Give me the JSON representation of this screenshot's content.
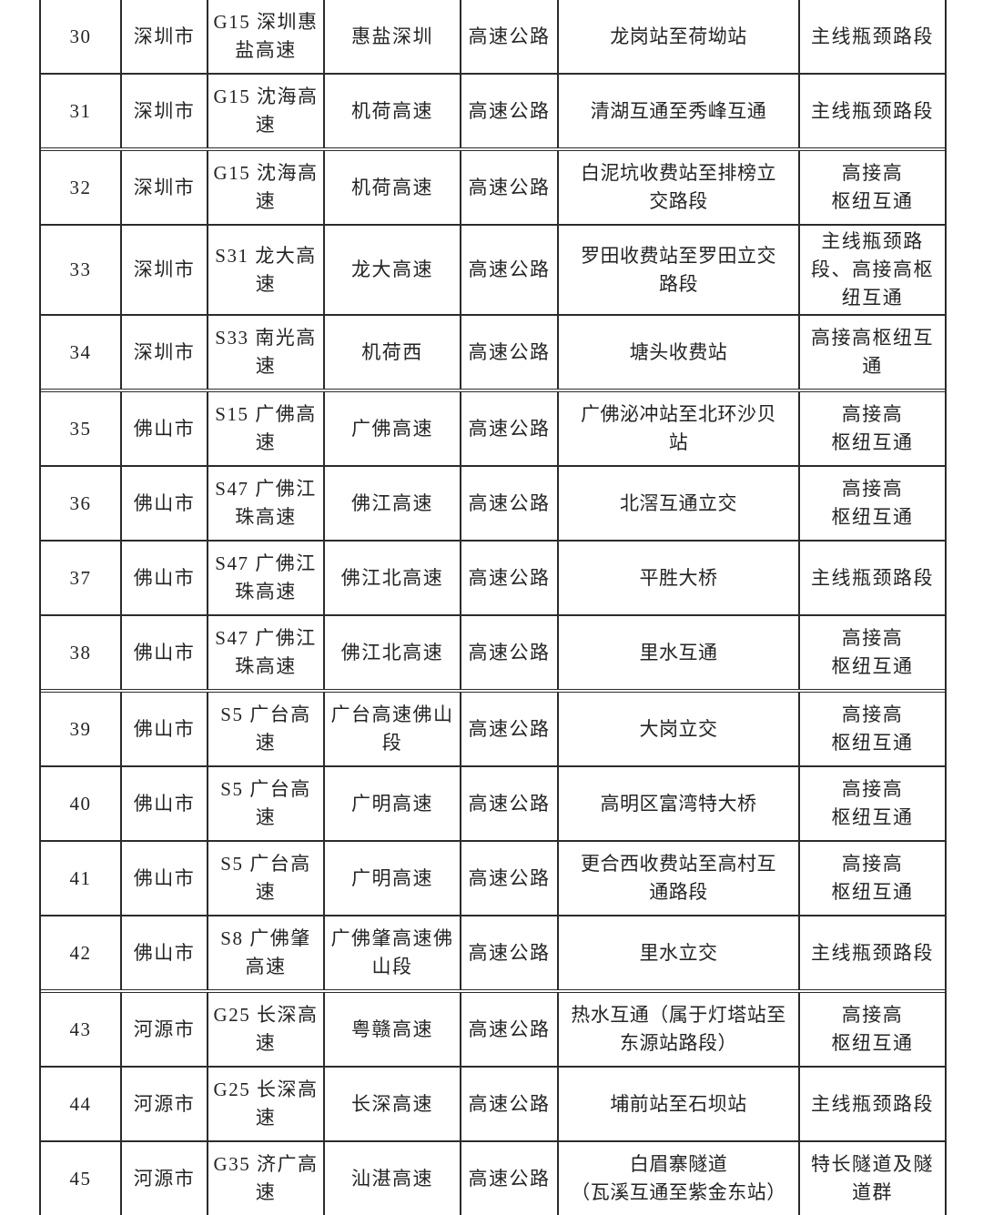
{
  "table": {
    "rows": [
      [
        "30",
        "深圳市",
        "G15 深圳惠\n盐高速",
        "惠盐深圳",
        "高速公路",
        "龙岗站至荷坳站",
        "主线瓶颈路段"
      ],
      [
        "31",
        "深圳市",
        "G15 沈海高\n速",
        "机荷高速",
        "高速公路",
        "清湖互通至秀峰互通",
        "主线瓶颈路段"
      ],
      [
        "32",
        "深圳市",
        "G15 沈海高\n速",
        "机荷高速",
        "高速公路",
        "白泥坑收费站至排榜立\n交路段",
        "高接高\n枢纽互通"
      ],
      [
        "33",
        "深圳市",
        "S31 龙大高\n速",
        "龙大高速",
        "高速公路",
        "罗田收费站至罗田立交\n路段",
        "主线瓶颈路\n段、高接高枢\n纽互通"
      ],
      [
        "34",
        "深圳市",
        "S33 南光高\n速",
        "机荷西",
        "高速公路",
        "塘头收费站",
        "高接高枢纽互\n通"
      ],
      [
        "35",
        "佛山市",
        "S15 广佛高\n速",
        "广佛高速",
        "高速公路",
        "广佛泌冲站至北环沙贝\n站",
        "高接高\n枢纽互通"
      ],
      [
        "36",
        "佛山市",
        "S47 广佛江\n珠高速",
        "佛江高速",
        "高速公路",
        "北滘互通立交",
        "高接高\n枢纽互通"
      ],
      [
        "37",
        "佛山市",
        "S47 广佛江\n珠高速",
        "佛江北高速",
        "高速公路",
        "平胜大桥",
        "主线瓶颈路段"
      ],
      [
        "38",
        "佛山市",
        "S47 广佛江\n珠高速",
        "佛江北高速",
        "高速公路",
        "里水互通",
        "高接高\n枢纽互通"
      ],
      [
        "39",
        "佛山市",
        "S5 广台高\n速",
        "广台高速佛山\n段",
        "高速公路",
        "大岗立交",
        "高接高\n枢纽互通"
      ],
      [
        "40",
        "佛山市",
        "S5 广台高\n速",
        "广明高速",
        "高速公路",
        "高明区富湾特大桥",
        "高接高\n枢纽互通"
      ],
      [
        "41",
        "佛山市",
        "S5 广台高\n速",
        "广明高速",
        "高速公路",
        "更合西收费站至高村互\n通路段",
        "高接高\n枢纽互通"
      ],
      [
        "42",
        "佛山市",
        "S8 广佛肇\n高速",
        "广佛肇高速佛\n山段",
        "高速公路",
        "里水立交",
        "主线瓶颈路段"
      ],
      [
        "43",
        "河源市",
        "G25 长深高\n速",
        "粤赣高速",
        "高速公路",
        "热水互通（属于灯塔站至\n东源站路段）",
        "高接高\n枢纽互通"
      ],
      [
        "44",
        "河源市",
        "G25 长深高\n速",
        "长深高速",
        "高速公路",
        "埔前站至石坝站",
        "主线瓶颈路段"
      ],
      [
        "45",
        "河源市",
        "G35 济广高\n速",
        "汕湛高速",
        "高速公路",
        "白眉寨隧道\n（瓦溪互通至紫金东站）",
        "特长隧道及隧\n道群"
      ]
    ],
    "text_color": "#242424",
    "border_color": "#2b2b2b"
  }
}
